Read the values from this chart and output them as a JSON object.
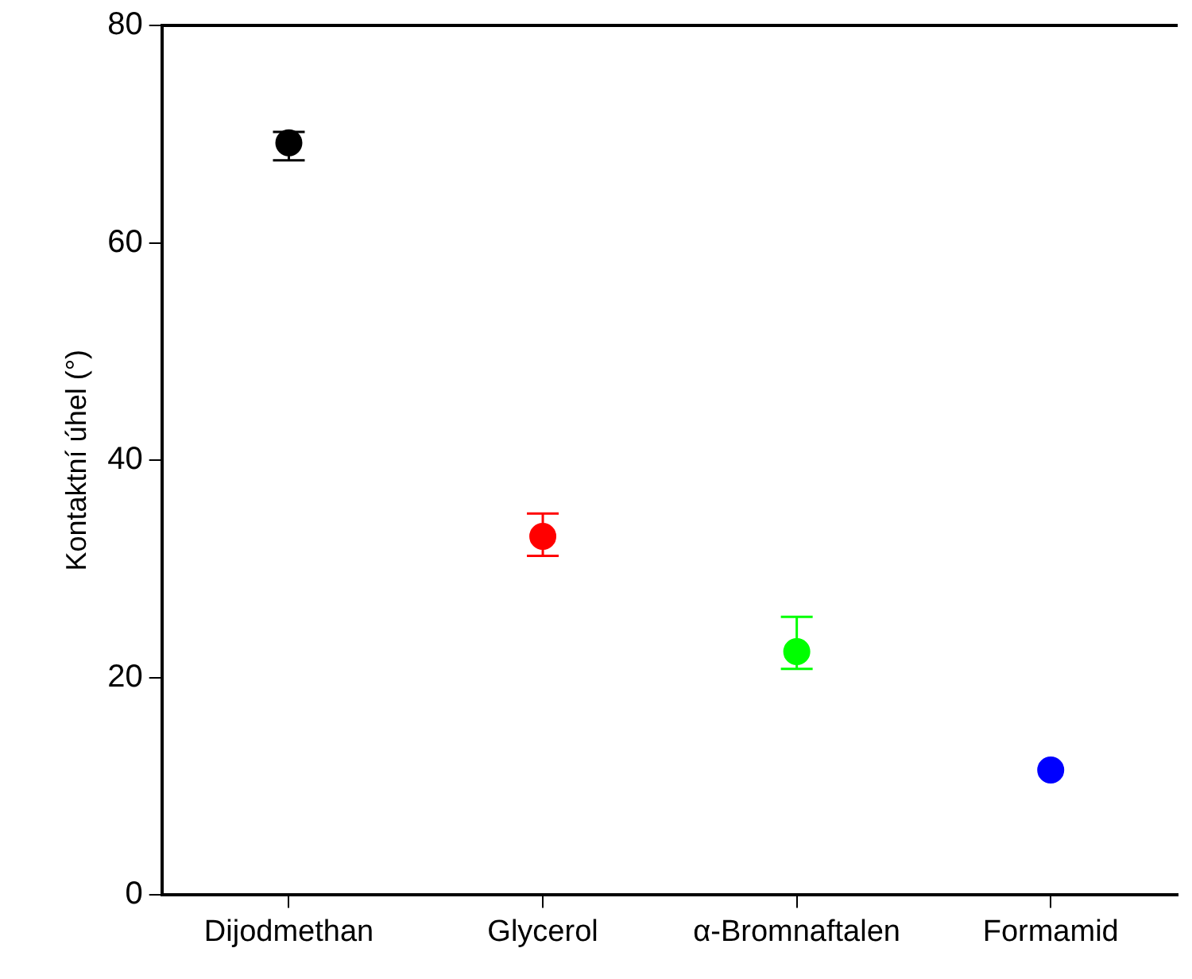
{
  "chart_data": {
    "type": "scatter",
    "ylabel": "Kontaktní úhel (°)",
    "categories": [
      "Dijodmethan",
      "Glycerol",
      "α-Bromnaftalen",
      "Formamid"
    ],
    "values": [
      69.2,
      33,
      22.4,
      11.5
    ],
    "colors": [
      "#000000",
      "#ff0000",
      "#00ff00",
      "#0000ff"
    ],
    "errors": [
      [
        67.6,
        70.2
      ],
      [
        31.2,
        35.1
      ],
      [
        20.8,
        25.6
      ],
      null
    ],
    "ylim": [
      0,
      80
    ],
    "yticks": [
      0,
      20,
      40,
      60,
      80
    ],
    "grid": false,
    "legend": false,
    "marker": "circle"
  }
}
